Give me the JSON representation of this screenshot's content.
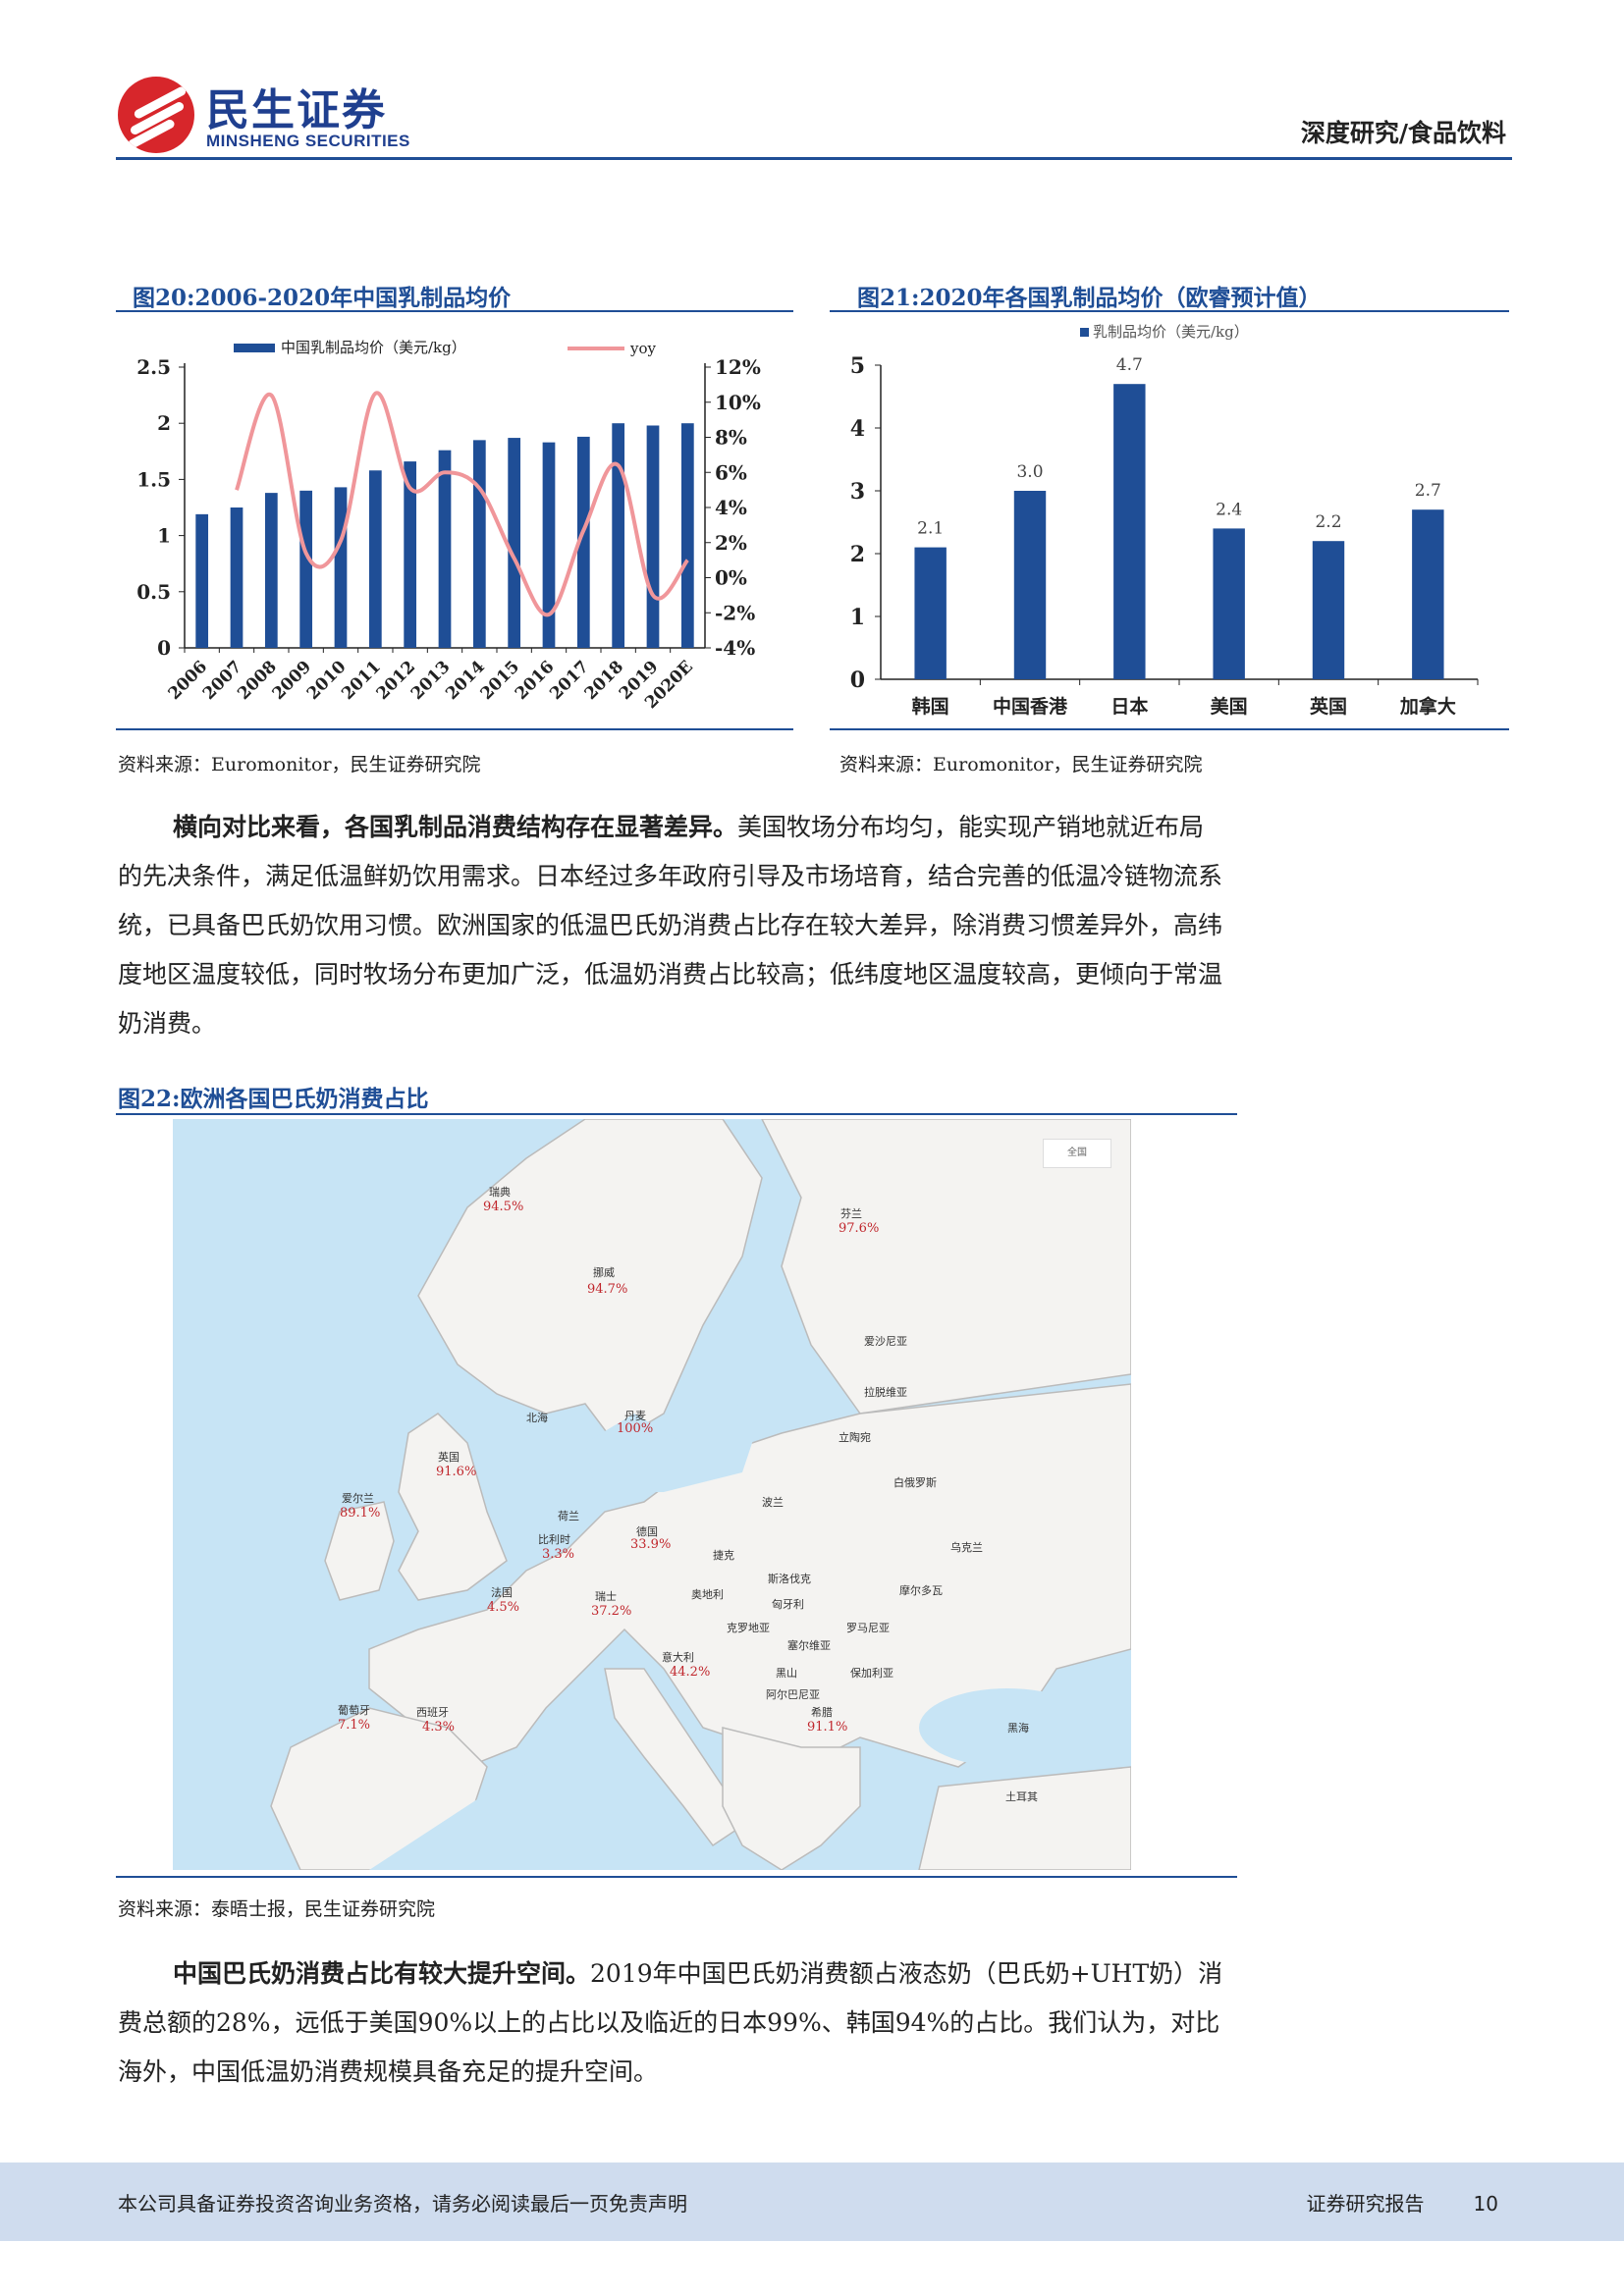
{
  "header": {
    "logo_cn": "民生证券",
    "logo_en": "MINSHENG SECURITIES",
    "category": "深度研究/食品饮料"
  },
  "figure20": {
    "title": "图20:2006-2020年中国乳制品均价",
    "source": "资料来源：Euromonitor，民生证券研究院",
    "chart_data": {
      "type": "bar+line",
      "categories": [
        "2006",
        "2007",
        "2008",
        "2009",
        "2010",
        "2011",
        "2012",
        "2013",
        "2014",
        "2015",
        "2016",
        "2017",
        "2018",
        "2019",
        "2020E"
      ],
      "series": [
        {
          "name": "中国乳制品均价（美元/kg）",
          "type": "bar",
          "axis": "left",
          "color": "#1f4e96",
          "values": [
            1.19,
            1.25,
            1.38,
            1.4,
            1.43,
            1.58,
            1.66,
            1.76,
            1.85,
            1.87,
            1.83,
            1.88,
            2.0,
            1.98,
            2.0
          ]
        },
        {
          "name": "yoy",
          "type": "line",
          "axis": "right",
          "color": "#f0969a",
          "values": [
            null,
            5.0,
            10.4,
            1.4,
            2.1,
            10.5,
            5.1,
            6.0,
            5.1,
            1.1,
            -2.1,
            2.7,
            6.4,
            -1.0,
            1.0
          ]
        }
      ],
      "ylim_left": [
        0,
        2.5
      ],
      "yticks_left": [
        "0",
        "0.5",
        "1",
        "1.5",
        "2",
        "2.5"
      ],
      "ylim_right": [
        -4,
        12
      ],
      "yticks_right": [
        "-4%",
        "-2%",
        "0%",
        "2%",
        "4%",
        "6%",
        "8%",
        "10%",
        "12%"
      ],
      "legend": "top"
    }
  },
  "figure21": {
    "title": "图21:2020年各国乳制品均价（欧睿预计值）",
    "source": "资料来源：Euromonitor，民生证券研究院",
    "chart_data": {
      "type": "bar",
      "categories": [
        "韩国",
        "中国香港",
        "日本",
        "美国",
        "英国",
        "加拿大"
      ],
      "series": [
        {
          "name": "乳制品均价（美元/kg）",
          "color": "#1f4e96",
          "values": [
            2.1,
            3.0,
            4.7,
            2.4,
            2.2,
            2.7
          ]
        }
      ],
      "data_labels": [
        "2.1",
        "3.0",
        "4.7",
        "2.4",
        "2.2",
        "2.7"
      ],
      "ylim": [
        0,
        5
      ],
      "yticks": [
        "0",
        "1",
        "2",
        "3",
        "4",
        "5"
      ],
      "legend": "top"
    }
  },
  "para1": {
    "lead": "横向对比来看，各国乳制品消费结构存在显著差异。",
    "rest": "美国牧场分布均匀，能实现产销地就近布局的先决条件，满足低温鲜奶饮用需求。日本经过多年政府引导及市场培育，结合完善的低温冷链物流系统，已具备巴氏奶饮用习惯。欧洲国家的低温巴氏奶消费占比存在较大差异，除消费习惯差异外，高纬度地区温度较低，同时牧场分布更加广泛，低温奶消费占比较高；低纬度地区温度较高，更倾向于常温奶消费。"
  },
  "figure22": {
    "title": "图22:欧洲各国巴氏奶消费占比",
    "source": "资料来源：泰晤士报，民生证券研究院",
    "map_control": "全国",
    "countries_with_values": [
      {
        "name": "瑞典",
        "value": "94.5%"
      },
      {
        "name": "芬兰",
        "value": "97.6%"
      },
      {
        "name": "挪威",
        "value": "94.7%"
      },
      {
        "name": "丹麦",
        "value": "100%"
      },
      {
        "name": "英国",
        "value": "91.6%"
      },
      {
        "name": "爱尔兰",
        "value": "89.1%"
      },
      {
        "name": "荷兰",
        "value": ""
      },
      {
        "name": "比利时",
        "value": "3.3%"
      },
      {
        "name": "德国",
        "value": "33.9%"
      },
      {
        "name": "法国",
        "value": "4.5%"
      },
      {
        "name": "瑞士",
        "value": "37.2%"
      },
      {
        "name": "意大利",
        "value": "44.2%"
      },
      {
        "name": "葡萄牙",
        "value": "7.1%"
      },
      {
        "name": "西班牙",
        "value": "4.3%"
      },
      {
        "name": "希腊",
        "value": "91.1%"
      }
    ],
    "other_labels": [
      "北海",
      "爱沙尼亚",
      "拉脱维亚",
      "立陶宛",
      "白俄罗斯",
      "波兰",
      "捷克",
      "斯洛伐克",
      "奥地利",
      "匈牙利",
      "摩尔多瓦",
      "乌克兰",
      "克罗地亚",
      "罗马尼亚",
      "塞尔维亚",
      "保加利亚",
      "黑山",
      "阿尔巴尼亚",
      "黑海",
      "土耳其"
    ]
  },
  "para2": {
    "lead": "中国巴氏奶消费占比有较大提升空间。",
    "rest": "2019年中国巴氏奶消费额占液态奶（巴氏奶+UHT奶）消费总额的28%，远低于美国90%以上的占比以及临近的日本99%、韩国94%的占比。我们认为，对比海外，中国低温奶消费规模具备充足的提升空间。"
  },
  "footer": {
    "disclaimer": "本公司具备证券投资咨询业务资格，请务必阅读最后一页免责声明",
    "report_type": "证券研究报告",
    "page_number": "10"
  }
}
